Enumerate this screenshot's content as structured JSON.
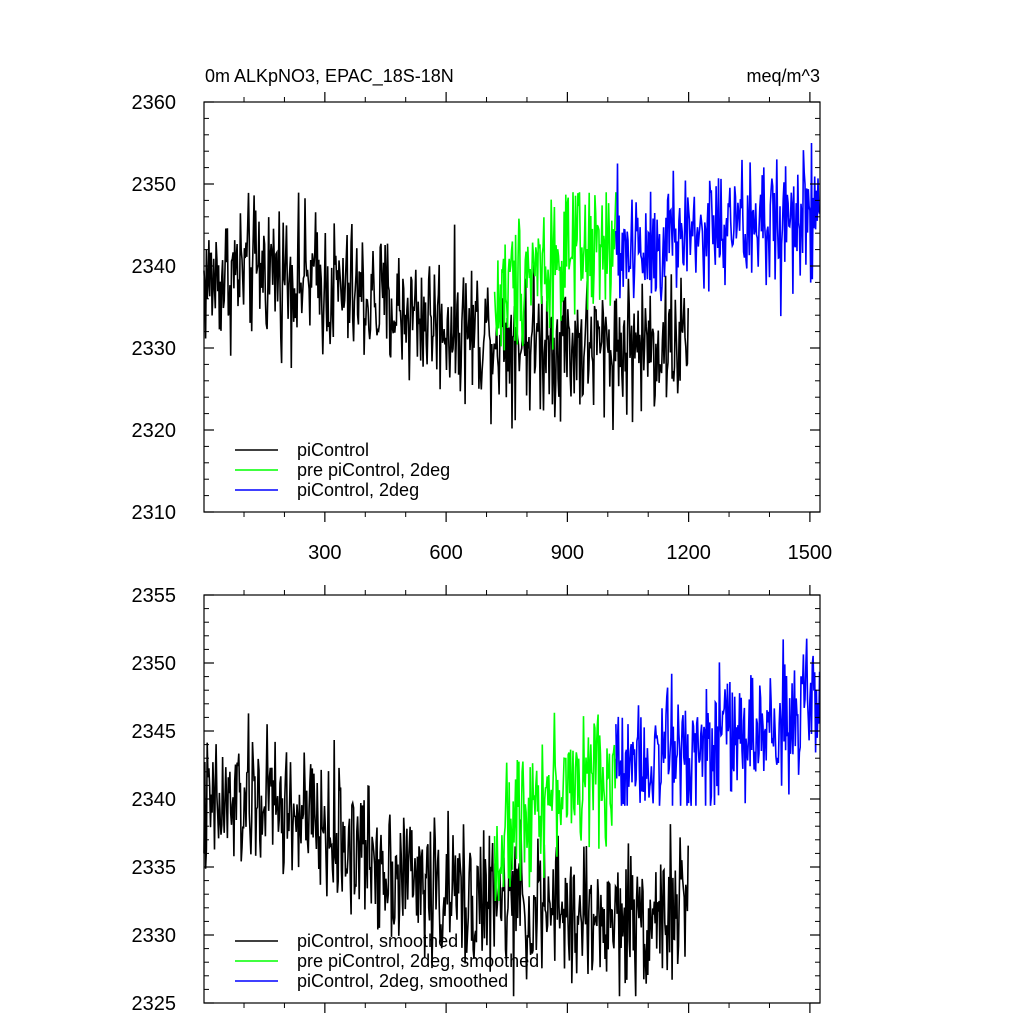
{
  "figure": {
    "title_left": "0m ALKpNO3, EPAC_18S-18N",
    "title_right": "meq/m^3"
  },
  "chart_data": [
    {
      "type": "line",
      "title": "0m ALKpNO3, EPAC_18S-18N",
      "units": "meq/m^3",
      "xlim": [
        1,
        1525
      ],
      "ylim": [
        2310,
        2360
      ],
      "xticks": [
        300,
        600,
        900,
        1200,
        1500
      ],
      "yticks": [
        2310,
        2320,
        2330,
        2340,
        2350,
        2360
      ],
      "grid": false,
      "legend_position": "bottom-left",
      "series": [
        {
          "name": "piControl",
          "color": "#000000",
          "x_range": [
            1,
            1200
          ],
          "mean_path": [
            [
              1,
              2338
            ],
            [
              150,
              2340
            ],
            [
              400,
              2336
            ],
            [
              600,
              2333
            ],
            [
              800,
              2331
            ],
            [
              1000,
              2330
            ],
            [
              1200,
              2331
            ]
          ],
          "amplitude": 4.2,
          "min": 2320,
          "max": 2351
        },
        {
          "name": "pre piControl, 2deg",
          "color": "#00ff00",
          "x_range": [
            720,
            1020
          ],
          "mean_path": [
            [
              720,
              2335
            ],
            [
              800,
              2340
            ],
            [
              900,
              2341
            ],
            [
              1020,
              2342
            ]
          ],
          "amplitude": 4.2,
          "min": 2329,
          "max": 2349
        },
        {
          "name": "piControl, 2deg",
          "color": "#0000ff",
          "x_range": [
            1020,
            1525
          ],
          "mean_path": [
            [
              1020,
              2342
            ],
            [
              1200,
              2344
            ],
            [
              1400,
              2345
            ],
            [
              1525,
              2346
            ]
          ],
          "amplitude": 4.2,
          "min": 2333,
          "max": 2355
        }
      ]
    },
    {
      "type": "line",
      "title": "",
      "xlim": [
        1,
        1525
      ],
      "ylim": [
        2325,
        2355
      ],
      "xticks": [
        300,
        600,
        900,
        1200,
        1500
      ],
      "yticks": [
        2325,
        2330,
        2335,
        2340,
        2345,
        2350,
        2355
      ],
      "grid": false,
      "legend_position": "bottom-left",
      "series": [
        {
          "name": "piControl, smoothed",
          "color": "#000000",
          "x_range": [
            1,
            1200
          ],
          "mean_path": [
            [
              1,
              2339
            ],
            [
              150,
              2340
            ],
            [
              400,
              2336
            ],
            [
              600,
              2333
            ],
            [
              800,
              2332
            ],
            [
              1000,
              2331
            ],
            [
              1200,
              2332
            ]
          ],
          "amplitude": 2.6,
          "min": 2325.5,
          "max": 2346.5
        },
        {
          "name": "pre piControl, 2deg, smoothed",
          "color": "#00ff00",
          "x_range": [
            720,
            1020
          ],
          "mean_path": [
            [
              720,
              2335
            ],
            [
              800,
              2340
            ],
            [
              900,
              2341
            ],
            [
              1020,
              2342
            ]
          ],
          "amplitude": 2.4,
          "min": 2332.5,
          "max": 2347
        },
        {
          "name": "piControl, 2deg, smoothed",
          "color": "#0000ff",
          "x_range": [
            1020,
            1525
          ],
          "mean_path": [
            [
              1020,
              2343
            ],
            [
              1200,
              2344
            ],
            [
              1400,
              2345
            ],
            [
              1525,
              2347
            ]
          ],
          "amplitude": 2.4,
          "min": 2339.5,
          "max": 2352
        }
      ]
    }
  ]
}
